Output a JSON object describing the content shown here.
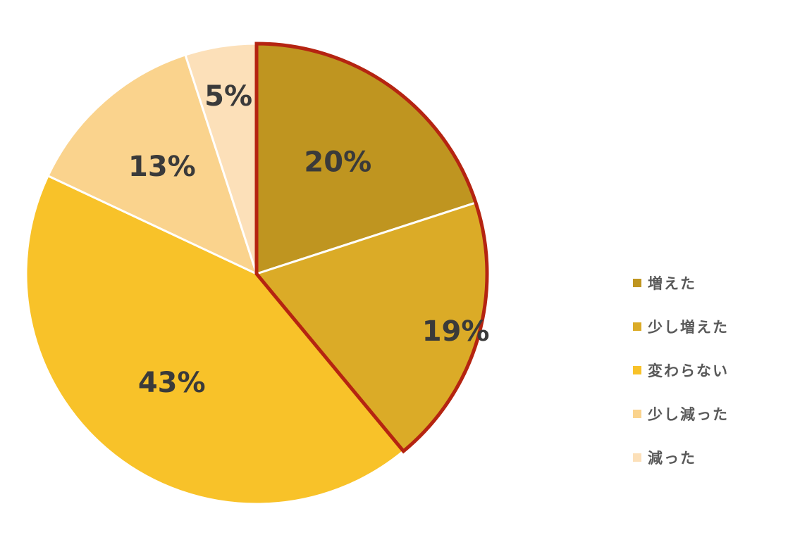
{
  "chart_data": {
    "type": "pie",
    "title": "",
    "categories": [
      "増えた",
      "少し増えた",
      "変わらない",
      "少し減った",
      "減った"
    ],
    "values": [
      20,
      19,
      43,
      13,
      5
    ],
    "labels": [
      "20%",
      "19%",
      "43%",
      "13%",
      "5%"
    ],
    "colors": [
      "#bf9520",
      "#dbab27",
      "#f8c229",
      "#fad38d",
      "#fce0b9"
    ],
    "highlight": {
      "slices": [
        "増えた",
        "少し増えた"
      ],
      "outline_color": "#b52411"
    },
    "start": "12 o'clock",
    "direction": "clockwise",
    "legend_position": "right"
  }
}
